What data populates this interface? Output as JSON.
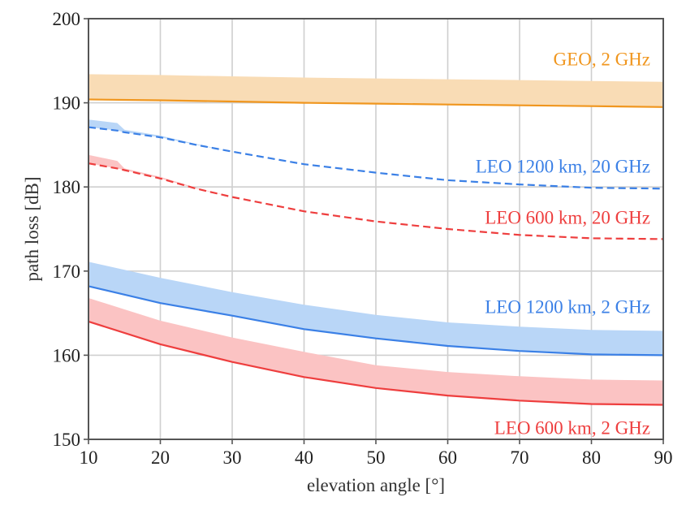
{
  "chart_data": {
    "type": "line",
    "title": "",
    "xlabel": "elevation angle [°]",
    "ylabel": "path loss [dB]",
    "xlim": [
      10,
      90
    ],
    "ylim": [
      150,
      200
    ],
    "xticks": [
      10,
      20,
      30,
      40,
      50,
      60,
      70,
      80,
      90
    ],
    "yticks": [
      150,
      160,
      170,
      180,
      190,
      200
    ],
    "xtick_labels": [
      "10",
      "20",
      "30",
      "40",
      "50",
      "60",
      "70",
      "80",
      "90"
    ],
    "ytick_labels": [
      "150",
      "160",
      "170",
      "180",
      "190",
      "200"
    ],
    "grid": true,
    "legend": "none (inline labels at right)",
    "series": [
      {
        "name": "GEO, 2 GHz",
        "label": "GEO, 2 GHz",
        "color": "#f0961e",
        "band_color": "#f9dcb5",
        "dash": false,
        "x": [
          10,
          20,
          30,
          40,
          50,
          60,
          70,
          80,
          90
        ],
        "values": [
          190.4,
          190.3,
          190.15,
          190.0,
          189.9,
          189.8,
          189.7,
          189.6,
          189.5
        ],
        "band_upper": [
          193.4,
          193.3,
          193.15,
          193.0,
          192.9,
          192.8,
          192.7,
          192.6,
          192.5
        ]
      },
      {
        "name": "LEO 1200 km, 20 GHz",
        "label": "LEO 1200 km, 20 GHz",
        "color": "#3b80e6",
        "band_color": "#b9d6f7",
        "dash": true,
        "x": [
          10,
          14,
          15,
          20,
          25,
          30,
          40,
          50,
          60,
          70,
          80,
          90
        ],
        "values": [
          187.1,
          186.7,
          186.5,
          185.9,
          185.0,
          184.2,
          182.7,
          181.7,
          180.8,
          180.3,
          179.9,
          179.8
        ],
        "band_upper": [
          188.0,
          187.6,
          186.8,
          186.1,
          185.1,
          184.2,
          182.7,
          181.7,
          180.8,
          180.3,
          179.9,
          179.8
        ]
      },
      {
        "name": "LEO 600 km, 20 GHz",
        "label": "LEO 600 km, 20 GHz",
        "color": "#ee3e3e",
        "band_color": "#fbc3c3",
        "dash": true,
        "x": [
          10,
          14,
          15,
          20,
          25,
          30,
          40,
          50,
          60,
          70,
          80,
          90
        ],
        "values": [
          182.8,
          182.2,
          182.0,
          181.0,
          179.8,
          178.8,
          177.1,
          175.9,
          175.0,
          174.3,
          173.9,
          173.8
        ],
        "band_upper": [
          183.8,
          183.1,
          182.2,
          181.2,
          179.9,
          178.8,
          177.1,
          175.9,
          175.0,
          174.3,
          173.9,
          173.8
        ]
      },
      {
        "name": "LEO 1200 km, 2 GHz",
        "label": "LEO 1200 km, 2 GHz",
        "color": "#3b80e6",
        "band_color": "#b9d6f7",
        "dash": false,
        "x": [
          10,
          20,
          30,
          40,
          50,
          60,
          70,
          80,
          90
        ],
        "values": [
          168.2,
          166.2,
          164.7,
          163.1,
          162.0,
          161.1,
          160.5,
          160.1,
          160.0
        ],
        "band_upper": [
          171.1,
          169.2,
          167.5,
          166.0,
          164.8,
          163.9,
          163.4,
          163.0,
          162.9
        ]
      },
      {
        "name": "LEO 600 km, 2 GHz",
        "label": "LEO 600 km, 2 GHz",
        "color": "#ee3e3e",
        "band_color": "#fbc3c3",
        "dash": false,
        "x": [
          10,
          20,
          30,
          40,
          50,
          60,
          70,
          80,
          90
        ],
        "values": [
          164.0,
          161.3,
          159.2,
          157.4,
          156.1,
          155.2,
          154.6,
          154.2,
          154.1
        ],
        "band_upper": [
          166.8,
          164.1,
          162.1,
          160.4,
          158.8,
          158.0,
          157.5,
          157.1,
          157.0
        ]
      }
    ],
    "annotations": [
      {
        "text": "GEO, 2 GHz",
        "series": 0,
        "x": 90,
        "y": 195.2
      },
      {
        "text": "LEO 1200 km, 20 GHz",
        "series": 1,
        "x": 90,
        "y": 182.5
      },
      {
        "text": "LEO 600 km, 20 GHz",
        "series": 2,
        "x": 90,
        "y": 176.4
      },
      {
        "text": "LEO 1200 km, 2 GHz",
        "series": 3,
        "x": 90,
        "y": 165.8
      },
      {
        "text": "LEO 600 km, 2 GHz",
        "series": 4,
        "x": 90,
        "y": 151.4
      }
    ]
  }
}
